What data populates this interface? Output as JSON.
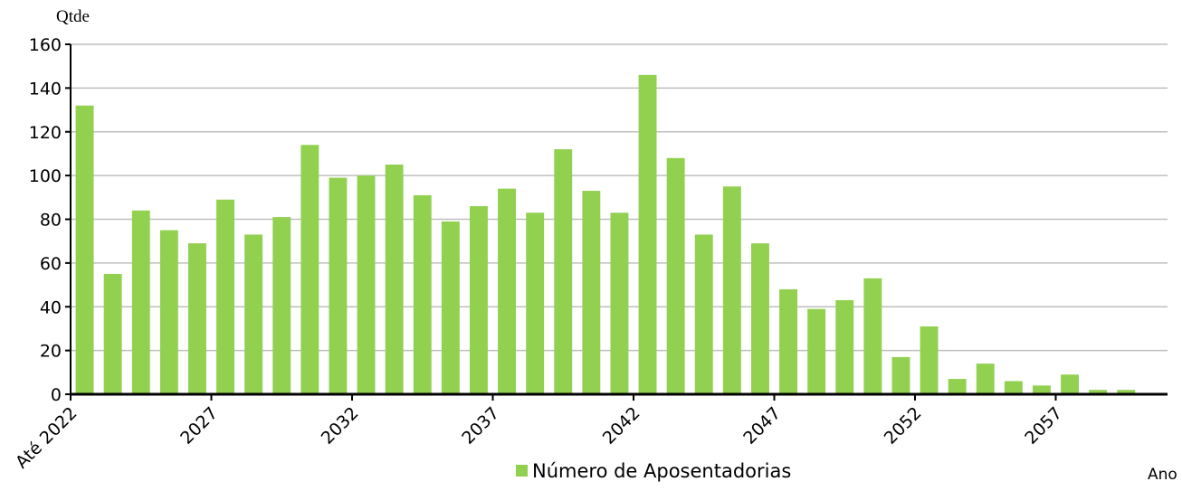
{
  "chart_data": {
    "type": "bar",
    "y_label": "Qtde",
    "x_label": "Ano",
    "categories": [
      "Até 2022",
      null,
      null,
      null,
      null,
      "2027",
      null,
      null,
      null,
      null,
      "2032",
      null,
      null,
      null,
      null,
      "2037",
      null,
      null,
      null,
      null,
      "2042",
      null,
      null,
      null,
      null,
      "2047",
      null,
      null,
      null,
      null,
      "2052",
      null,
      null,
      null,
      null,
      "2057",
      null,
      null
    ],
    "series": [
      {
        "name": "Número de Aposentadorias",
        "color": "#92d050",
        "values": [
          132,
          55,
          84,
          75,
          69,
          89,
          73,
          81,
          114,
          99,
          100,
          105,
          91,
          79,
          86,
          94,
          83,
          112,
          93,
          83,
          146,
          108,
          73,
          95,
          69,
          48,
          39,
          43,
          53,
          17,
          31,
          7,
          14,
          6,
          4,
          9,
          2,
          2
        ]
      }
    ],
    "ylim": [
      0,
      160
    ],
    "yticks": [
      0,
      20,
      40,
      60,
      80,
      100,
      120,
      140,
      160
    ],
    "grid": true
  }
}
